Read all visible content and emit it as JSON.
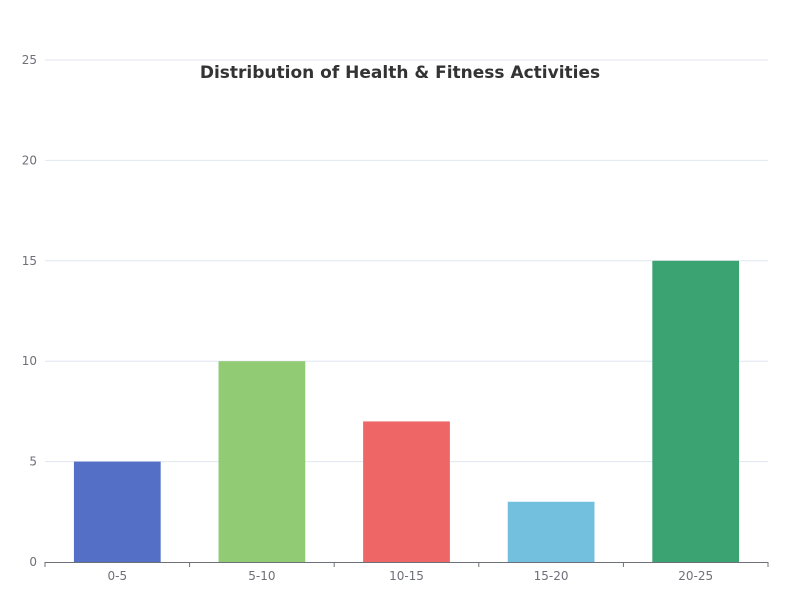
{
  "chart_data": {
    "type": "bar",
    "title": "Distribution of Health & Fitness Activities",
    "categories": [
      "0-5",
      "5-10",
      "10-15",
      "15-20",
      "20-25"
    ],
    "values": [
      5,
      10,
      7,
      3,
      15
    ],
    "colors": [
      "#5470c6",
      "#91cc75",
      "#ee6666",
      "#73c0de",
      "#3ba272"
    ],
    "xlabel": "",
    "ylabel": "",
    "ylim": [
      0,
      25
    ],
    "yticks": [
      0,
      5,
      10,
      15,
      20,
      25
    ],
    "grid": true,
    "legend": "none"
  }
}
